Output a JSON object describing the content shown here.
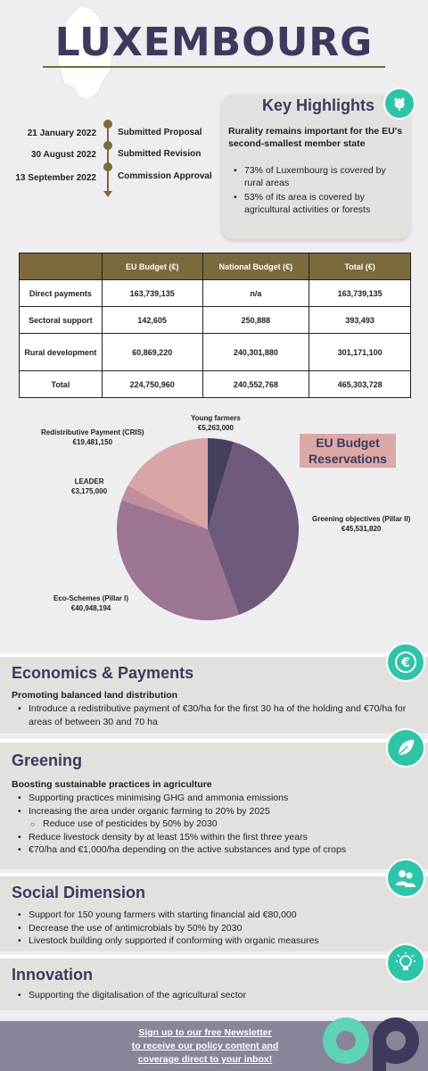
{
  "title": "LUXEMBOURG",
  "timeline": [
    {
      "date": "21 January 2022",
      "label": "Submitted Proposal"
    },
    {
      "date": "30 August 2022",
      "label": "Submitted Revision"
    },
    {
      "date": "13 September 2022",
      "label": "Commission Approval"
    }
  ],
  "highlights": {
    "title": "Key Highlights",
    "icon": "wheat-icon",
    "subtitle": "Rurality remains important for the EU's second-smallest member state",
    "bullets": [
      "73% of Luxembourg is covered by rural areas",
      "53% of its area is covered by agricultural activities or forests"
    ]
  },
  "table": {
    "headers": [
      "",
      "EU Budget (€)",
      "National Budget (€)",
      "Total (€)"
    ],
    "rows": [
      [
        "Direct payments",
        "163,739,135",
        "n/a",
        "163,739,135"
      ],
      [
        "Sectoral support",
        "142,605",
        "250,888",
        "393,493"
      ],
      [
        "Rural development",
        "60,869,220",
        "240,301,880",
        "301,171,100"
      ],
      [
        "Total",
        "224,750,960",
        "240,552,768",
        "465,303,728"
      ]
    ]
  },
  "chart_data": {
    "type": "pie",
    "title": "EU Budget Reservations",
    "slices": [
      {
        "name": "Young farmers",
        "label": "€5,263,000",
        "value": 5263000,
        "color": "#45405f"
      },
      {
        "name": "Greening objectives (Pillar II)",
        "label": "€45,531,820",
        "value": 45531820,
        "color": "#6e5a7c"
      },
      {
        "name": "Eco-Schemes (Pillar I)",
        "label": "€40,948,194",
        "value": 40948194,
        "color": "#9c7592"
      },
      {
        "name": "LEADER",
        "label": "€3,175,000",
        "value": 3175000,
        "color": "#c18e9a"
      },
      {
        "name": "Redistributive Payment (CRIS)",
        "label": "€19,481,150",
        "value": 19481150,
        "color": "#d9a4a5"
      }
    ]
  },
  "sections": {
    "economics": {
      "title": "Economics & Payments",
      "icon": "euro-icon",
      "subtitle": "Promoting balanced land distribution",
      "bullets": [
        "Introduce a redistributive payment of €30/ha for the first 30 ha of the holding and €70/ha for areas of between 30 and 70 ha"
      ]
    },
    "greening": {
      "title": "Greening",
      "icon": "leaf-icon",
      "subtitle": "Boosting sustainable practices in agriculture",
      "bullets": [
        "Supporting practices minimising GHG and ammonia emissions",
        "Increasing the area under organic farming to 20% by 2025",
        "Reduce use of pesticides by 50% by 2030",
        "Reduce livestock density by at least 15% within the first three years",
        "€70/ha and €1,000/ha depending on the active substances and type of crops"
      ]
    },
    "social": {
      "title": "Social Dimension",
      "icon": "people-icon",
      "bullets": [
        "Support for 150 young farmers with starting financial aid €80,000",
        "Decrease the use of antimicrobials by 50% by 2030",
        "Livestock building only supported if conforming with organic measures"
      ]
    },
    "innovation": {
      "title": "Innovation",
      "icon": "lightbulb-icon",
      "bullets": [
        "Supporting the digitalisation of the agricultural sector"
      ]
    }
  },
  "footer": {
    "line1": "Sign up to our free Newsletter",
    "line2": "to receive our policy content and",
    "line3": "coverage direct to your inbox!"
  },
  "colors": {
    "accent": "#3d3a5e",
    "gold": "#7b6b3c",
    "teal": "#2ec4a8",
    "pink": "#dca9a7"
  }
}
